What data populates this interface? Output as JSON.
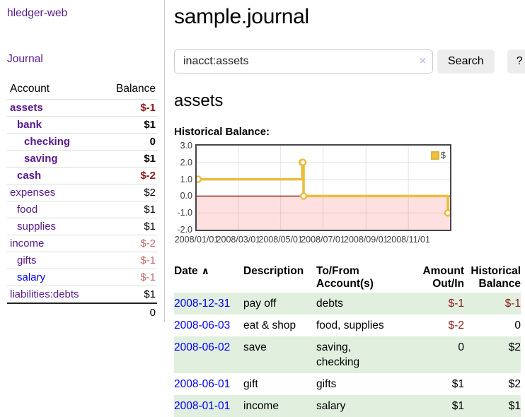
{
  "brand": "hledger-web",
  "nav": {
    "journal": "Journal"
  },
  "sidebar": {
    "headers": {
      "account": "Account",
      "balance": "Balance"
    },
    "accounts": [
      {
        "name": "assets",
        "indent": 1,
        "matched": true,
        "balance": "$-1",
        "neg": "strong"
      },
      {
        "name": "bank",
        "indent": 2,
        "matched": true,
        "balance": "$1",
        "neg": "none"
      },
      {
        "name": "checking",
        "indent": 3,
        "matched": true,
        "balance": "0",
        "neg": "none"
      },
      {
        "name": "saving",
        "indent": 3,
        "matched": true,
        "balance": "$1",
        "neg": "none"
      },
      {
        "name": "cash",
        "indent": 2,
        "matched": true,
        "balance": "$-2",
        "neg": "strong"
      },
      {
        "name": "expenses",
        "indent": 1,
        "matched": false,
        "balance": "$2",
        "neg": "none"
      },
      {
        "name": "food",
        "indent": 2,
        "matched": false,
        "balance": "$1",
        "neg": "none"
      },
      {
        "name": "supplies",
        "indent": 2,
        "matched": false,
        "balance": "$1",
        "neg": "none"
      },
      {
        "name": "income",
        "indent": 1,
        "matched": false,
        "balance": "$-2",
        "neg": "pale"
      },
      {
        "name": "gifts",
        "indent": 2,
        "matched": false,
        "balance": "$-1",
        "neg": "pale"
      },
      {
        "name": "salary",
        "indent": 2,
        "matched": false,
        "unvisited": true,
        "balance": "$-1",
        "neg": "pale"
      },
      {
        "name": "liabilities:debts",
        "indent": 1,
        "matched": false,
        "balance": "$1",
        "neg": "none"
      }
    ],
    "total": "0"
  },
  "main": {
    "title": "sample.journal",
    "account_heading": "assets",
    "chart_label": "Historical Balance:"
  },
  "search": {
    "value": "inacct:assets",
    "clear": "×",
    "button": "Search",
    "help": "?"
  },
  "chart_data": {
    "type": "line",
    "step": true,
    "title": "Historical Balance:",
    "series": [
      {
        "name": "$",
        "color": "#e9bd3e",
        "points": [
          {
            "date": "2008-01-01",
            "value": 1
          },
          {
            "date": "2008-06-01",
            "value": 2
          },
          {
            "date": "2008-06-02",
            "value": 2
          },
          {
            "date": "2008-06-03",
            "value": 0
          },
          {
            "date": "2008-12-31",
            "value": -1
          }
        ]
      }
    ],
    "ylim": [
      -2,
      3
    ],
    "yticks": [
      3.0,
      2.0,
      1.0,
      0.0,
      -1.0,
      -2.0
    ],
    "xticks": [
      {
        "label": "2008/01/01",
        "day": 0
      },
      {
        "label": "2008/03/01",
        "day": 60
      },
      {
        "label": "2008/05/01",
        "day": 121
      },
      {
        "label": "2008/07/01",
        "day": 182
      },
      {
        "label": "2008/09/01",
        "day": 244
      },
      {
        "label": "2008/11/01",
        "day": 305
      }
    ],
    "x_total_days": 365,
    "legend": "$",
    "legend_position": "top-right",
    "grid": true,
    "grid_color": "#e3e3e3",
    "zero_line_color": "#8b0000",
    "negative_region_fill": "rgba(255,0,0,0.12)"
  },
  "register": {
    "headers": {
      "date": "Date",
      "sort_arrow": "∧",
      "description": "Description",
      "accounts": "To/From Account(s)",
      "amount": "Amount Out/In",
      "balance": "Historical Balance"
    },
    "rows": [
      {
        "date": "2008-12-31",
        "description": "pay off",
        "accounts": "debts",
        "amount": "$-1",
        "amount_neg": true,
        "balance": "$-1",
        "balance_neg": true
      },
      {
        "date": "2008-06-03",
        "description": "eat & shop",
        "accounts": "food, supplies",
        "amount": "$-2",
        "amount_neg": true,
        "balance": "0",
        "balance_neg": false
      },
      {
        "date": "2008-06-02",
        "description": "save",
        "accounts": "saving, checking",
        "amount": "0",
        "amount_neg": false,
        "balance": "$2",
        "balance_neg": false
      },
      {
        "date": "2008-06-01",
        "description": "gift",
        "accounts": "gifts",
        "amount": "$1",
        "amount_neg": false,
        "balance": "$2",
        "balance_neg": false
      },
      {
        "date": "2008-01-01",
        "description": "income",
        "accounts": "salary",
        "amount": "$1",
        "amount_neg": false,
        "balance": "$1",
        "balance_neg": false
      }
    ]
  }
}
